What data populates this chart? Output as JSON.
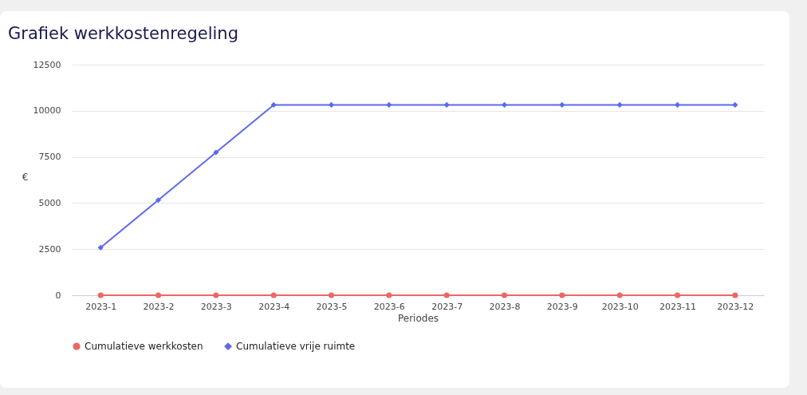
{
  "chart_data": {
    "type": "line",
    "title": "Grafiek werkkostenregeling",
    "xlabel": "Periodes",
    "ylabel": "€",
    "categories": [
      "2023-1",
      "2023-2",
      "2023-3",
      "2023-4",
      "2023-5",
      "2023-6",
      "2023-7",
      "2023-8",
      "2023-9",
      "2023-10",
      "2023-11",
      "2023-12"
    ],
    "series": [
      {
        "name": "Cumulatieve werkkosten",
        "color": "#ee6666",
        "marker": "circle",
        "values": [
          0,
          0,
          0,
          0,
          0,
          0,
          0,
          0,
          0,
          0,
          0,
          0
        ]
      },
      {
        "name": "Cumulatieve vrije ruimte",
        "color": "#5d68f0",
        "marker": "diamond",
        "values": [
          2580,
          5160,
          7740,
          10320,
          10320,
          10320,
          10320,
          10320,
          10320,
          10320,
          10320,
          10320
        ]
      }
    ],
    "ylim": [
      0,
      12500
    ],
    "yticks": [
      0,
      2500,
      5000,
      7500,
      10000,
      12500
    ],
    "grid": "y",
    "legend": "bottom"
  }
}
